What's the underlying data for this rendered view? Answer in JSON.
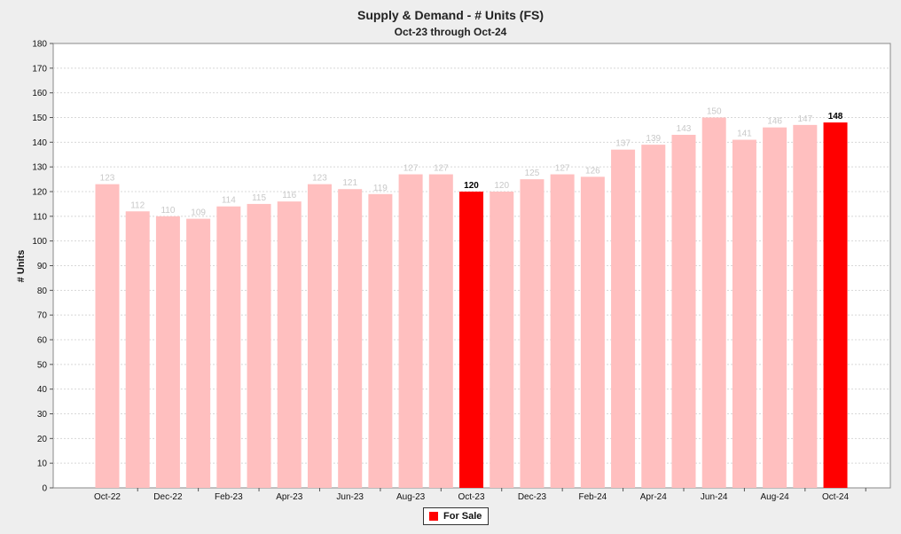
{
  "chart_data": {
    "type": "bar",
    "title": "Supply & Demand - # Units (FS)",
    "subtitle": "Oct-23 through Oct-24",
    "ylabel": "# Units",
    "xlabel": "",
    "ylim": [
      0,
      180
    ],
    "ytick_step": 10,
    "grid": true,
    "legend_position": "bottom-center",
    "categories": [
      "Oct-22",
      "Nov-22",
      "Dec-22",
      "Jan-23",
      "Feb-23",
      "Mar-23",
      "Apr-23",
      "May-23",
      "Jun-23",
      "Jul-23",
      "Aug-23",
      "Sep-23",
      "Oct-23",
      "Nov-23",
      "Dec-23",
      "Jan-24",
      "Feb-24",
      "Mar-24",
      "Apr-24",
      "May-24",
      "Jun-24",
      "Jul-24",
      "Aug-24",
      "Sep-24",
      "Oct-24"
    ],
    "tick_labels": [
      "Oct-22",
      "Dec-22",
      "Feb-23",
      "Apr-23",
      "Jun-23",
      "Aug-23",
      "Oct-23",
      "Dec-23",
      "Feb-24",
      "Apr-24",
      "Jun-24",
      "Aug-24",
      "Oct-24"
    ],
    "values": [
      123,
      112,
      110,
      109,
      114,
      115,
      116,
      123,
      121,
      119,
      127,
      127,
      120,
      120,
      125,
      127,
      126,
      137,
      139,
      143,
      150,
      141,
      146,
      147,
      148
    ],
    "highlighted": [
      "Oct-23",
      "Oct-24"
    ],
    "series": [
      {
        "name": "For Sale",
        "values": [
          123,
          112,
          110,
          109,
          114,
          115,
          116,
          123,
          121,
          119,
          127,
          127,
          120,
          120,
          125,
          127,
          126,
          137,
          139,
          143,
          150,
          141,
          146,
          147,
          148
        ]
      }
    ],
    "colors": {
      "highlight": "#ff0000",
      "normal": "#ffbfbf",
      "label_highlight": "#000000",
      "label_normal": "#c8c8c8"
    }
  },
  "legend": {
    "label": "For Sale"
  }
}
